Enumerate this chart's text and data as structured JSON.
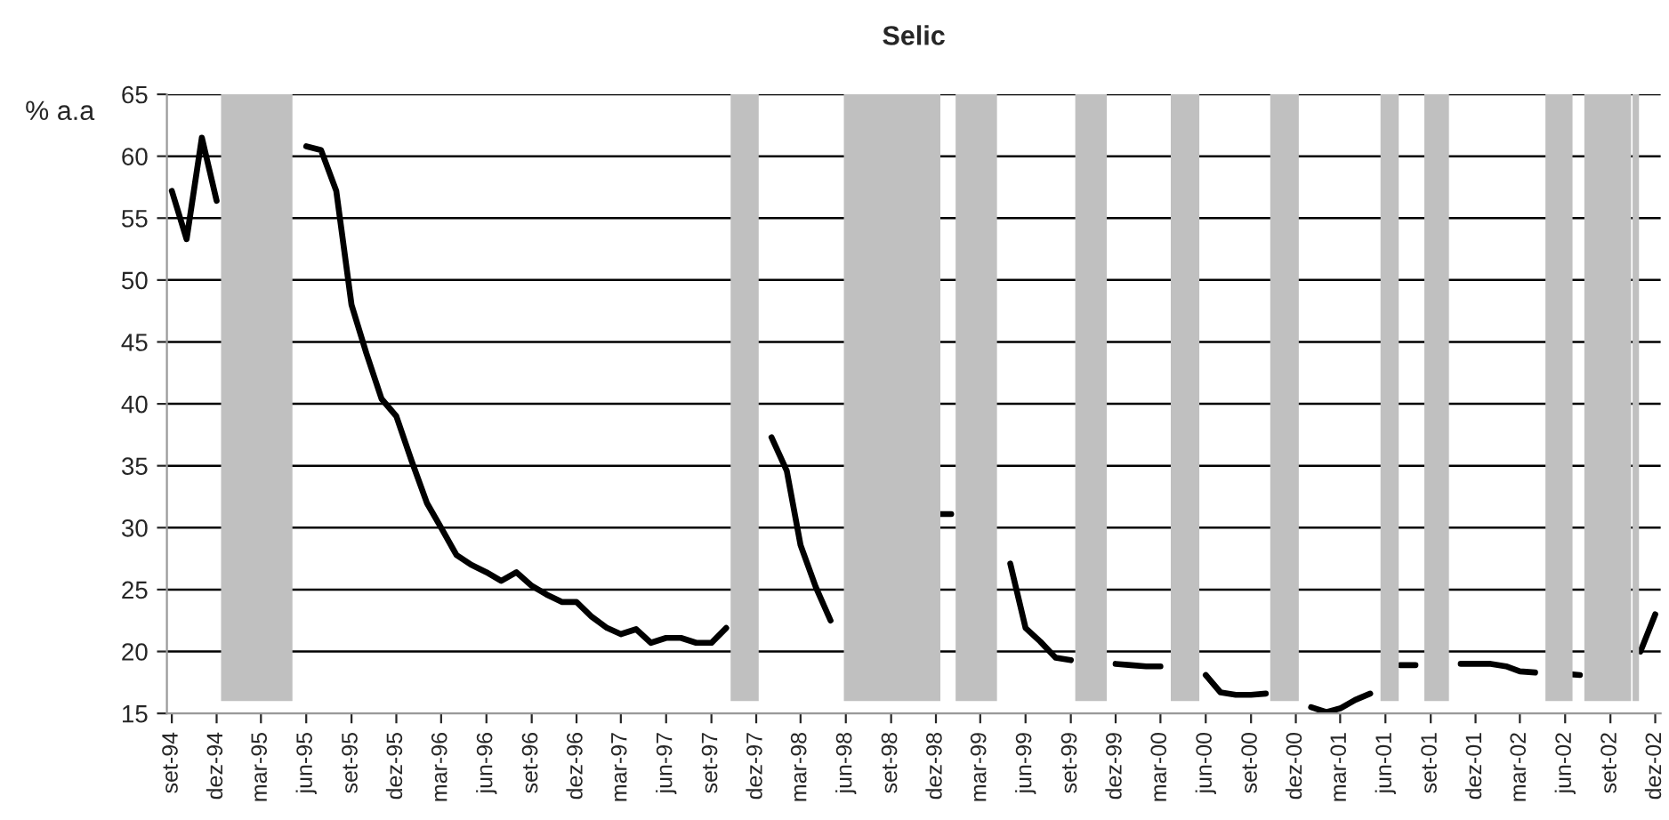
{
  "chart_data": {
    "type": "line",
    "title": "Selic",
    "ylabel": "% a.a",
    "x": [
      "1994-09",
      "1994-10",
      "1994-11",
      "1994-12",
      "1995-01",
      "1995-02",
      "1995-03",
      "1995-04",
      "1995-05",
      "1995-06",
      "1995-07",
      "1995-08",
      "1995-09",
      "1995-10",
      "1995-11",
      "1995-12",
      "1996-01",
      "1996-02",
      "1996-03",
      "1996-04",
      "1996-05",
      "1996-06",
      "1996-07",
      "1996-08",
      "1996-09",
      "1996-10",
      "1996-11",
      "1996-12",
      "1997-01",
      "1997-02",
      "1997-03",
      "1997-04",
      "1997-05",
      "1997-06",
      "1997-07",
      "1997-08",
      "1997-09",
      "1997-10",
      "1997-11",
      "1997-12",
      "1998-01",
      "1998-02",
      "1998-03",
      "1998-04",
      "1998-05",
      "1998-06",
      "1998-07",
      "1998-08",
      "1998-09",
      "1998-10",
      "1998-11",
      "1998-12",
      "1999-01",
      "1999-02",
      "1999-03",
      "1999-04",
      "1999-05",
      "1999-06",
      "1999-07",
      "1999-08",
      "1999-09",
      "1999-10",
      "1999-11",
      "1999-12",
      "2000-01",
      "2000-02",
      "2000-03",
      "2000-04",
      "2000-05",
      "2000-06",
      "2000-07",
      "2000-08",
      "2000-09",
      "2000-10",
      "2000-11",
      "2000-12",
      "2001-01",
      "2001-02",
      "2001-03",
      "2001-04",
      "2001-05",
      "2001-06",
      "2001-07",
      "2001-08",
      "2001-09",
      "2001-10",
      "2001-11",
      "2001-12",
      "2002-01",
      "2002-02",
      "2002-03",
      "2002-04",
      "2002-05",
      "2002-06",
      "2002-07",
      "2002-08",
      "2002-09",
      "2002-10",
      "2002-11",
      "2002-12"
    ],
    "series": [
      {
        "color": "#000000",
        "values": [
          57.2,
          53.3,
          61.5,
          56.4,
          null,
          null,
          null,
          null,
          null,
          60.8,
          60.5,
          57.2,
          48.0,
          44.1,
          40.4,
          39.0,
          35.4,
          32.0,
          30.0,
          27.8,
          27.0,
          26.4,
          25.7,
          26.4,
          25.3,
          24.6,
          24.0,
          24.0,
          22.8,
          21.9,
          21.4,
          21.8,
          20.7,
          21.1,
          21.1,
          20.7,
          20.7,
          21.9,
          null,
          null,
          37.3,
          34.6,
          28.6,
          25.2,
          22.5,
          null,
          null,
          null,
          null,
          null,
          null,
          31.1,
          31.1,
          null,
          null,
          null,
          27.1,
          21.9,
          20.8,
          19.5,
          19.3,
          null,
          null,
          19.0,
          18.9,
          18.8,
          18.8,
          null,
          null,
          18.1,
          16.7,
          16.5,
          16.5,
          16.6,
          null,
          null,
          15.5,
          15.1,
          15.4,
          16.1,
          16.6,
          null,
          18.9,
          18.9,
          null,
          null,
          19.0,
          19.0,
          19.0,
          18.8,
          18.4,
          18.3,
          null,
          18.2,
          18.1,
          null,
          null,
          null,
          20.0,
          23.0
        ]
      }
    ],
    "xlim": [
      "1994-08-22",
      "2002-12-12"
    ],
    "xticks": [
      {
        "value": "1994-09",
        "label": "set-94"
      },
      {
        "value": "1994-12",
        "label": "dez-94"
      },
      {
        "value": "1995-03",
        "label": "mar-95"
      },
      {
        "value": "1995-06",
        "label": "jun-95"
      },
      {
        "value": "1995-09",
        "label": "set-95"
      },
      {
        "value": "1995-12",
        "label": "dez-95"
      },
      {
        "value": "1996-03",
        "label": "mar-96"
      },
      {
        "value": "1996-06",
        "label": "jun-96"
      },
      {
        "value": "1996-09",
        "label": "set-96"
      },
      {
        "value": "1996-12",
        "label": "dez-96"
      },
      {
        "value": "1997-03",
        "label": "mar-97"
      },
      {
        "value": "1997-06",
        "label": "jun-97"
      },
      {
        "value": "1997-09",
        "label": "set-97"
      },
      {
        "value": "1997-12",
        "label": "dez-97"
      },
      {
        "value": "1998-03",
        "label": "mar-98"
      },
      {
        "value": "1998-06",
        "label": "jun-98"
      },
      {
        "value": "1998-09",
        "label": "set-98"
      },
      {
        "value": "1998-12",
        "label": "dez-98"
      },
      {
        "value": "1999-03",
        "label": "mar-99"
      },
      {
        "value": "1999-06",
        "label": "jun-99"
      },
      {
        "value": "1999-09",
        "label": "set-99"
      },
      {
        "value": "1999-12",
        "label": "dez-99"
      },
      {
        "value": "2000-03",
        "label": "mar-00"
      },
      {
        "value": "2000-06",
        "label": "jun-00"
      },
      {
        "value": "2000-09",
        "label": "set-00"
      },
      {
        "value": "2000-12",
        "label": "dez-00"
      },
      {
        "value": "2001-03",
        "label": "mar-01"
      },
      {
        "value": "2001-06",
        "label": "jun-01"
      },
      {
        "value": "2001-09",
        "label": "set-01"
      },
      {
        "value": "2001-12",
        "label": "dez-01"
      },
      {
        "value": "2002-03",
        "label": "mar-02"
      },
      {
        "value": "2002-06",
        "label": "jun-02"
      },
      {
        "value": "2002-09",
        "label": "set-02"
      },
      {
        "value": "2002-12",
        "label": "dez-02"
      }
    ],
    "ylim": [
      15,
      65
    ],
    "yticks": [
      15,
      20,
      25,
      30,
      35,
      40,
      45,
      50,
      55,
      60,
      65
    ],
    "grid": "y",
    "line_style": "solid",
    "marker": "none",
    "bands": [
      {
        "axis": "x",
        "from": "1994-12-10",
        "to": "1995-05-04",
        "color": "#c0c0c0"
      },
      {
        "axis": "x",
        "from": "1997-10-10",
        "to": "1997-12-06",
        "color": "#c0c0c0"
      },
      {
        "axis": "x",
        "from": "1998-05-28",
        "to": "1998-12-10",
        "color": "#c0c0c0"
      },
      {
        "axis": "x",
        "from": "1999-01-10",
        "to": "1999-04-04",
        "color": "#c0c0c0"
      },
      {
        "axis": "x",
        "from": "1999-09-10",
        "to": "1999-11-13",
        "color": "#c0c0c0"
      },
      {
        "axis": "x",
        "from": "2000-03-22",
        "to": "2000-05-19",
        "color": "#c0c0c0"
      },
      {
        "axis": "x",
        "from": "2000-10-10",
        "to": "2000-12-07",
        "color": "#c0c0c0"
      },
      {
        "axis": "x",
        "from": "2001-05-22",
        "to": "2001-06-28",
        "color": "#c0c0c0"
      },
      {
        "axis": "x",
        "from": "2001-08-19",
        "to": "2001-10-08",
        "color": "#c0c0c0"
      },
      {
        "axis": "x",
        "from": "2002-04-22",
        "to": "2002-06-16",
        "color": "#c0c0c0"
      },
      {
        "axis": "x",
        "from": "2002-07-10",
        "to": "2002-10-13",
        "color": "#c0c0c0"
      },
      {
        "axis": "x",
        "from": "2002-10-16",
        "to": "2002-10-29",
        "color": "#c0c0c0"
      }
    ]
  }
}
